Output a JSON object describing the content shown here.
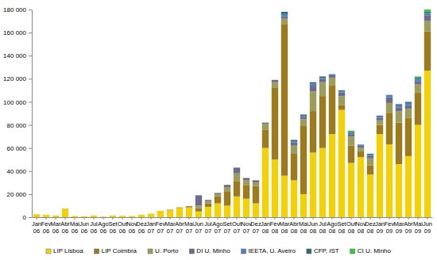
{
  "chart_data": {
    "type": "bar",
    "stacked": true,
    "grid": false,
    "legend": "bottom",
    "categories": [
      "Jan 06",
      "Fev 06",
      "Mar 06",
      "Abr 06",
      "Mai 06",
      "Jun 06",
      "Jul 06",
      "Ago 06",
      "Set 06",
      "Out 06",
      "Nov 06",
      "Dez 06",
      "Jan 07",
      "Fev 07",
      "Mar 07",
      "Abr 07",
      "Mai 07",
      "Jun 07",
      "Jul 07",
      "Ago 07",
      "Set 07",
      "Out 07",
      "Nov 07",
      "Dez 07",
      "Jan 08",
      "Fev 08",
      "Mar 08",
      "Abr 08",
      "Mai 08",
      "Jun 08",
      "Jul 08",
      "Ago 08",
      "Set 08",
      "Out 08",
      "Nov 08",
      "Dez 08",
      "Jan 09",
      "Fev 09",
      "Mar 09",
      "Abr 09",
      "Mai 09",
      "Jun 09"
    ],
    "ylim": [
      0,
      180000
    ],
    "yticks": [
      0,
      {
        "value": 20000,
        "label": "20 000"
      },
      {
        "value": 40000,
        "label": "40 000"
      },
      {
        "value": 60000,
        "label": "60 000"
      },
      {
        "value": 80000,
        "label": "80 000"
      },
      {
        "value": 100000,
        "label": "100 000"
      },
      {
        "value": 120000,
        "label": "120 000"
      },
      {
        "value": 140000,
        "label": "140 000"
      },
      {
        "value": 160000,
        "label": "160 000"
      },
      {
        "value": 180000,
        "label": "180 000"
      }
    ],
    "series": [
      {
        "name": "LIP Lisboa",
        "color": "#f2d10a",
        "values": [
          2500,
          2000,
          1500,
          7500,
          1000,
          800,
          1500,
          500,
          1500,
          1200,
          1000,
          2000,
          3000,
          5500,
          6000,
          8000,
          8500,
          5000,
          9000,
          12000,
          10000,
          18000,
          16000,
          12000,
          60000,
          50000,
          36000,
          32000,
          20000,
          56000,
          60000,
          72000,
          93000,
          47000,
          52000,
          37000,
          72000,
          63000,
          46000,
          53000,
          80000,
          127000
        ]
      },
      {
        "name": "LIP Coimbra",
        "color": "#9c7a1e",
        "values": [
          0,
          0,
          0,
          0,
          0,
          0,
          0,
          0,
          0,
          0,
          0,
          0,
          0,
          0,
          500,
          500,
          1000,
          3000,
          3000,
          6000,
          12000,
          13000,
          12000,
          15000,
          16000,
          62000,
          131000,
          23000,
          59000,
          36000,
          45000,
          42000,
          4000,
          15000,
          5000,
          8000,
          8000,
          27000,
          36000,
          33000,
          28000,
          34000
        ]
      },
      {
        "name": "U. Porto",
        "color": "#9c9c5c",
        "values": [
          0,
          0,
          0,
          0,
          0,
          0,
          0,
          0,
          0,
          0,
          0,
          0,
          0,
          0,
          0,
          0,
          0,
          2000,
          2000,
          2000,
          4000,
          7000,
          4000,
          3000,
          5000,
          5000,
          5000,
          7000,
          6000,
          17000,
          12000,
          7000,
          8000,
          8000,
          3000,
          6000,
          4000,
          9000,
          10000,
          8000,
          7000,
          9000
        ]
      },
      {
        "name": "DI U. Minho",
        "color": "#6e6a8c",
        "values": [
          0,
          0,
          0,
          0,
          0,
          0,
          0,
          0,
          0,
          0,
          0,
          0,
          0,
          0,
          0,
          0,
          0,
          9000,
          1000,
          1000,
          2000,
          5000,
          2000,
          2000,
          1000,
          2000,
          2000,
          3000,
          2000,
          5000,
          3000,
          2000,
          3000,
          2000,
          2000,
          2000,
          2000,
          5000,
          3000,
          3000,
          3000,
          5000
        ]
      },
      {
        "name": "IEETA, U. Aveiro",
        "color": "#4f81bd",
        "values": [
          0,
          0,
          0,
          0,
          0,
          0,
          0,
          0,
          0,
          0,
          0,
          0,
          0,
          0,
          0,
          0,
          0,
          0,
          0,
          0,
          0,
          0,
          0,
          0,
          0,
          0,
          2000,
          1000,
          1000,
          2000,
          1000,
          1000,
          1000,
          1000,
          1000,
          1000,
          1000,
          2000,
          2000,
          2000,
          2000,
          2000
        ]
      },
      {
        "name": "CFP, IST",
        "color": "#2d6b78",
        "values": [
          0,
          0,
          0,
          0,
          0,
          0,
          0,
          0,
          0,
          0,
          0,
          0,
          0,
          0,
          0,
          0,
          0,
          0,
          0,
          0,
          0,
          0,
          0,
          0,
          0,
          0,
          2000,
          1000,
          1000,
          1000,
          1000,
          0,
          1000,
          1000,
          0,
          1000,
          1000,
          0,
          1000,
          1000,
          1000,
          1000
        ]
      },
      {
        "name": "CI U. Minho",
        "color": "#33cc33",
        "values": [
          0,
          0,
          0,
          0,
          0,
          0,
          0,
          0,
          0,
          0,
          0,
          0,
          0,
          0,
          0,
          0,
          0,
          0,
          0,
          0,
          0,
          0,
          0,
          0,
          0,
          0,
          0,
          0,
          0,
          0,
          0,
          0,
          0,
          1000,
          0,
          0,
          0,
          0,
          0,
          0,
          1000,
          2000
        ]
      }
    ]
  }
}
